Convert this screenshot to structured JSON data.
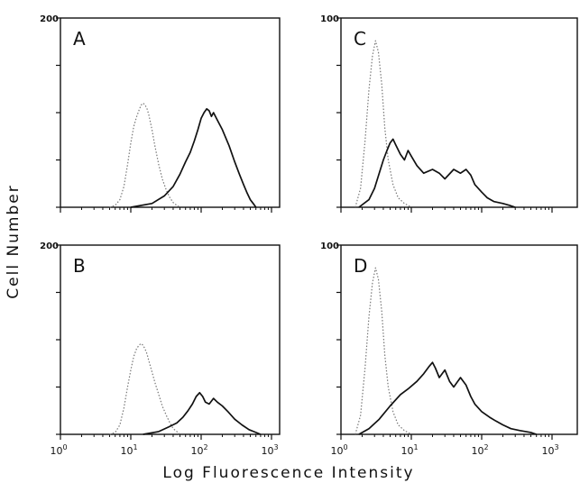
{
  "figure": {
    "ylabel": "Cell Number",
    "xlabel": "Log Fluorescence Intensity"
  },
  "colors": {
    "solid": "#111111",
    "dotted": "#777777"
  },
  "chart_data": [
    {
      "type": "line",
      "panel_label": "A",
      "x_scale": "log",
      "xlim": [
        1,
        1000
      ],
      "ylim": [
        0,
        200
      ],
      "y_tick_label": "200",
      "x_tick_labels": [],
      "grid": false,
      "series": [
        {
          "style": "dotted",
          "points": [
            [
              5,
              0
            ],
            [
              6,
              2
            ],
            [
              7,
              8
            ],
            [
              8,
              22
            ],
            [
              9,
              45
            ],
            [
              10,
              68
            ],
            [
              11,
              85
            ],
            [
              12,
              95
            ],
            [
              13,
              102
            ],
            [
              14,
              108
            ],
            [
              15,
              110
            ],
            [
              16,
              108
            ],
            [
              17,
              104
            ],
            [
              18,
              98
            ],
            [
              20,
              82
            ],
            [
              22,
              65
            ],
            [
              25,
              45
            ],
            [
              28,
              30
            ],
            [
              32,
              18
            ],
            [
              36,
              10
            ],
            [
              40,
              5
            ],
            [
              45,
              2
            ],
            [
              50,
              0
            ]
          ]
        },
        {
          "style": "solid",
          "points": [
            [
              10,
              0
            ],
            [
              20,
              4
            ],
            [
              30,
              12
            ],
            [
              40,
              22
            ],
            [
              50,
              35
            ],
            [
              60,
              48
            ],
            [
              70,
              58
            ],
            [
              80,
              70
            ],
            [
              90,
              82
            ],
            [
              100,
              94
            ],
            [
              110,
              100
            ],
            [
              120,
              104
            ],
            [
              130,
              102
            ],
            [
              140,
              96
            ],
            [
              150,
              100
            ],
            [
              170,
              92
            ],
            [
              200,
              82
            ],
            [
              250,
              65
            ],
            [
              300,
              48
            ],
            [
              350,
              35
            ],
            [
              400,
              24
            ],
            [
              450,
              15
            ],
            [
              500,
              8
            ],
            [
              550,
              4
            ],
            [
              600,
              0
            ]
          ]
        }
      ]
    },
    {
      "type": "line",
      "panel_label": "C",
      "x_scale": "log",
      "xlim": [
        1,
        1000
      ],
      "ylim": [
        0,
        100
      ],
      "y_tick_label": "100",
      "x_tick_labels": [],
      "grid": false,
      "series": [
        {
          "style": "dotted",
          "points": [
            [
              1.6,
              0
            ],
            [
              1.9,
              10
            ],
            [
              2.2,
              35
            ],
            [
              2.5,
              62
            ],
            [
              2.8,
              80
            ],
            [
              3.1,
              88
            ],
            [
              3.4,
              82
            ],
            [
              3.8,
              65
            ],
            [
              4.2,
              42
            ],
            [
              4.7,
              25
            ],
            [
              5.5,
              12
            ],
            [
              6.5,
              5
            ],
            [
              8,
              2
            ],
            [
              10,
              0
            ]
          ]
        },
        {
          "style": "solid",
          "points": [
            [
              1.8,
              0
            ],
            [
              2.5,
              4
            ],
            [
              3,
              10
            ],
            [
              3.5,
              18
            ],
            [
              4,
              25
            ],
            [
              4.5,
              30
            ],
            [
              5,
              34
            ],
            [
              5.5,
              36
            ],
            [
              6,
              33
            ],
            [
              7,
              28
            ],
            [
              8,
              25
            ],
            [
              9,
              30
            ],
            [
              10,
              27
            ],
            [
              12,
              22
            ],
            [
              15,
              18
            ],
            [
              20,
              20
            ],
            [
              25,
              18
            ],
            [
              30,
              15
            ],
            [
              40,
              20
            ],
            [
              50,
              18
            ],
            [
              60,
              20
            ],
            [
              70,
              17
            ],
            [
              80,
              12
            ],
            [
              100,
              8
            ],
            [
              120,
              5
            ],
            [
              150,
              3
            ],
            [
              200,
              2
            ],
            [
              250,
              1
            ],
            [
              300,
              0
            ]
          ]
        }
      ]
    },
    {
      "type": "line",
      "panel_label": "B",
      "x_scale": "log",
      "xlim": [
        1,
        1000
      ],
      "ylim": [
        0,
        200
      ],
      "y_tick_label": "200",
      "x_tick_labels": [
        "10^0",
        "10^1",
        "10^2",
        "10^3"
      ],
      "grid": false,
      "series": [
        {
          "style": "dotted",
          "points": [
            [
              5,
              0
            ],
            [
              6,
              2
            ],
            [
              7,
              10
            ],
            [
              8,
              28
            ],
            [
              9,
              50
            ],
            [
              10,
              68
            ],
            [
              11,
              82
            ],
            [
              12,
              90
            ],
            [
              13,
              94
            ],
            [
              14,
              96
            ],
            [
              15,
              94
            ],
            [
              16,
              90
            ],
            [
              17,
              85
            ],
            [
              18,
              78
            ],
            [
              20,
              66
            ],
            [
              22,
              55
            ],
            [
              25,
              42
            ],
            [
              28,
              30
            ],
            [
              32,
              20
            ],
            [
              36,
              12
            ],
            [
              40,
              6
            ],
            [
              45,
              3
            ],
            [
              50,
              0
            ]
          ]
        },
        {
          "style": "solid",
          "points": [
            [
              15,
              0
            ],
            [
              25,
              3
            ],
            [
              35,
              8
            ],
            [
              45,
              12
            ],
            [
              55,
              18
            ],
            [
              65,
              25
            ],
            [
              75,
              32
            ],
            [
              85,
              40
            ],
            [
              95,
              44
            ],
            [
              105,
              40
            ],
            [
              115,
              34
            ],
            [
              130,
              32
            ],
            [
              150,
              38
            ],
            [
              170,
              34
            ],
            [
              200,
              30
            ],
            [
              240,
              24
            ],
            [
              300,
              16
            ],
            [
              380,
              10
            ],
            [
              480,
              5
            ],
            [
              600,
              2
            ],
            [
              700,
              0
            ]
          ]
        }
      ]
    },
    {
      "type": "line",
      "panel_label": "D",
      "x_scale": "log",
      "xlim": [
        1,
        1000
      ],
      "ylim": [
        0,
        100
      ],
      "y_tick_label": "100",
      "x_tick_labels": [
        "10^0",
        "10^1",
        "10^2",
        "10^3"
      ],
      "grid": false,
      "series": [
        {
          "style": "dotted",
          "points": [
            [
              1.6,
              0
            ],
            [
              1.9,
              10
            ],
            [
              2.2,
              35
            ],
            [
              2.5,
              62
            ],
            [
              2.8,
              80
            ],
            [
              3.1,
              88
            ],
            [
              3.4,
              82
            ],
            [
              3.8,
              65
            ],
            [
              4.2,
              42
            ],
            [
              4.7,
              25
            ],
            [
              5.5,
              12
            ],
            [
              6.5,
              5
            ],
            [
              8,
              2
            ],
            [
              10,
              0
            ]
          ]
        },
        {
          "style": "solid",
          "points": [
            [
              1.8,
              0
            ],
            [
              2.5,
              3
            ],
            [
              3.5,
              8
            ],
            [
              5,
              15
            ],
            [
              7,
              21
            ],
            [
              9,
              24
            ],
            [
              12,
              28
            ],
            [
              15,
              32
            ],
            [
              18,
              36
            ],
            [
              20,
              38
            ],
            [
              22,
              35
            ],
            [
              25,
              30
            ],
            [
              30,
              34
            ],
            [
              35,
              28
            ],
            [
              40,
              25
            ],
            [
              50,
              30
            ],
            [
              60,
              26
            ],
            [
              70,
              20
            ],
            [
              80,
              16
            ],
            [
              100,
              12
            ],
            [
              130,
              9
            ],
            [
              160,
              7
            ],
            [
              200,
              5
            ],
            [
              260,
              3
            ],
            [
              350,
              2
            ],
            [
              500,
              1
            ],
            [
              600,
              0
            ]
          ]
        }
      ]
    }
  ]
}
